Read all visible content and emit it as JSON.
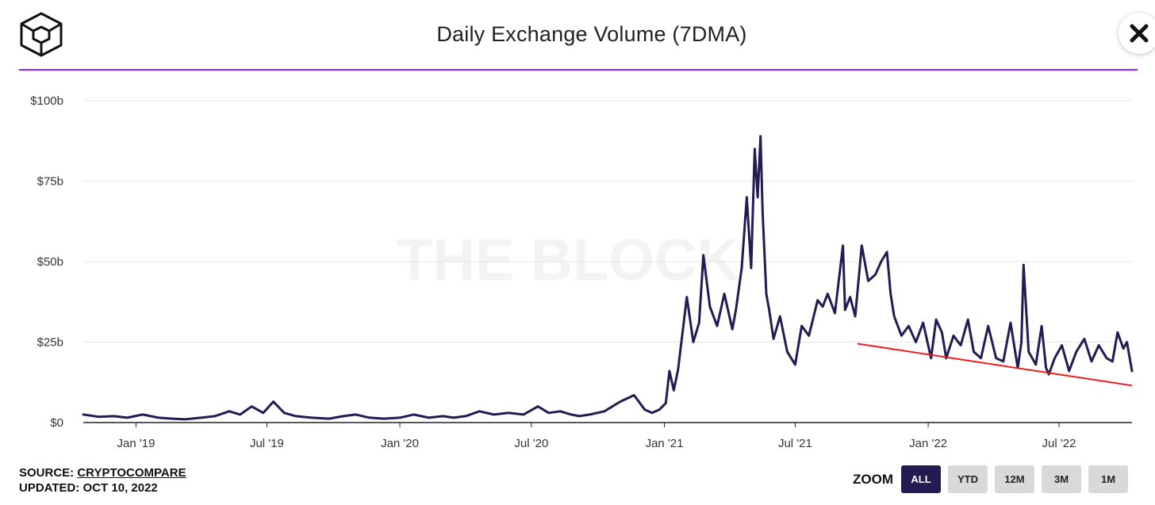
{
  "header": {
    "title": "Daily Exchange Volume (7DMA)",
    "close_icon": "close-icon",
    "logo_icon": "cube-logo-icon"
  },
  "watermark": "THE BLOCK",
  "footer": {
    "source_label": "SOURCE:",
    "source_name": "CRYPTOCOMPARE",
    "updated": "UPDATED: OCT 10, 2022"
  },
  "zoom": {
    "label": "ZOOM",
    "buttons": [
      "ALL",
      "YTD",
      "12M",
      "3M",
      "1M"
    ],
    "active": "ALL"
  },
  "colors": {
    "line": "#231c52",
    "trendline": "#ee1c1c",
    "divider": "#a020f0",
    "grid": "#e6e6e6",
    "active_button": "#231c52"
  },
  "chart_data": {
    "type": "line",
    "title": "Daily Exchange Volume (7DMA)",
    "xlabel": "",
    "ylabel": "",
    "ylim": [
      0,
      100
    ],
    "y_unit": "b",
    "yticks": [
      0,
      25,
      50,
      75,
      100
    ],
    "ytick_labels": [
      "$0",
      "$25b",
      "$50b",
      "$75b",
      "$100b"
    ],
    "xlim": [
      "2018-10-20",
      "2022-10-10"
    ],
    "xtick_labels": [
      {
        "date": "2019-01-01",
        "label": "Jan '19"
      },
      {
        "date": "2019-07-01",
        "label": "Jul '19"
      },
      {
        "date": "2020-01-01",
        "label": "Jan '20"
      },
      {
        "date": "2020-07-01",
        "label": "Jul '20"
      },
      {
        "date": "2021-01-01",
        "label": "Jan '21"
      },
      {
        "date": "2021-07-01",
        "label": "Jul '21"
      },
      {
        "date": "2022-01-01",
        "label": "Jan '22"
      },
      {
        "date": "2022-07-01",
        "label": "Jul '22"
      }
    ],
    "grid": true,
    "series": [
      {
        "x": [
          "2018-10-20",
          "2018-11-10",
          "2018-12-01",
          "2018-12-20",
          "2019-01-10",
          "2019-02-01",
          "2019-02-20",
          "2019-03-10",
          "2019-04-01",
          "2019-04-20",
          "2019-05-10",
          "2019-05-25",
          "2019-06-10",
          "2019-06-26",
          "2019-07-10",
          "2019-07-25",
          "2019-08-10",
          "2019-09-01",
          "2019-09-25",
          "2019-10-15",
          "2019-11-01",
          "2019-11-20",
          "2019-12-10",
          "2020-01-01",
          "2020-01-20",
          "2020-02-10",
          "2020-03-01",
          "2020-03-15",
          "2020-04-01",
          "2020-04-20",
          "2020-05-10",
          "2020-05-30",
          "2020-06-20",
          "2020-07-10",
          "2020-07-25",
          "2020-08-10",
          "2020-08-25",
          "2020-09-05",
          "2020-09-20",
          "2020-10-10",
          "2020-11-01",
          "2020-11-20",
          "2020-12-05",
          "2020-12-15",
          "2020-12-25",
          "2021-01-03",
          "2021-01-08",
          "2021-01-14",
          "2021-01-20",
          "2021-02-01",
          "2021-02-10",
          "2021-02-18",
          "2021-02-24",
          "2021-03-05",
          "2021-03-15",
          "2021-03-25",
          "2021-04-05",
          "2021-04-10",
          "2021-04-18",
          "2021-04-25",
          "2021-05-01",
          "2021-05-06",
          "2021-05-10",
          "2021-05-14",
          "2021-05-17",
          "2021-05-20",
          "2021-05-22",
          "2021-05-26",
          "2021-06-01",
          "2021-06-10",
          "2021-06-20",
          "2021-07-01",
          "2021-07-10",
          "2021-07-20",
          "2021-08-01",
          "2021-08-08",
          "2021-08-15",
          "2021-08-25",
          "2021-09-05",
          "2021-09-08",
          "2021-09-15",
          "2021-09-22",
          "2021-10-01",
          "2021-10-10",
          "2021-10-20",
          "2021-10-28",
          "2021-11-05",
          "2021-11-10",
          "2021-11-15",
          "2021-11-25",
          "2021-12-05",
          "2021-12-15",
          "2021-12-25",
          "2022-01-05",
          "2022-01-12",
          "2022-01-20",
          "2022-01-26",
          "2022-02-05",
          "2022-02-15",
          "2022-02-25",
          "2022-03-05",
          "2022-03-15",
          "2022-03-25",
          "2022-04-05",
          "2022-04-15",
          "2022-04-25",
          "2022-05-05",
          "2022-05-10",
          "2022-05-13",
          "2022-05-20",
          "2022-05-30",
          "2022-06-07",
          "2022-06-13",
          "2022-06-17",
          "2022-06-25",
          "2022-07-05",
          "2022-07-15",
          "2022-07-25",
          "2022-08-05",
          "2022-08-15",
          "2022-08-25",
          "2022-09-05",
          "2022-09-13",
          "2022-09-20",
          "2022-09-28",
          "2022-10-03",
          "2022-10-10"
        ],
        "values": [
          2.5,
          1.8,
          2.0,
          1.5,
          2.5,
          1.5,
          1.2,
          1.0,
          1.5,
          2.0,
          3.5,
          2.5,
          5.0,
          3.0,
          6.5,
          3.0,
          2.0,
          1.5,
          1.2,
          2.0,
          2.5,
          1.5,
          1.2,
          1.5,
          2.5,
          1.5,
          2.0,
          1.5,
          2.0,
          3.5,
          2.5,
          3.0,
          2.5,
          5.0,
          3.0,
          3.5,
          2.5,
          2.0,
          2.5,
          3.5,
          6.5,
          8.5,
          4.0,
          3.0,
          4.0,
          6.0,
          16.0,
          10.0,
          16.5,
          39.0,
          25.0,
          31.0,
          52.0,
          36.0,
          30.0,
          40.0,
          29.0,
          35.0,
          48.0,
          70.0,
          48.0,
          85.0,
          70.0,
          89.0,
          65.0,
          50.0,
          40.0,
          35.0,
          26.0,
          33.0,
          22.0,
          18.0,
          30.0,
          27.0,
          38.0,
          36.0,
          40.0,
          34.0,
          55.0,
          35.0,
          39.0,
          33.0,
          55.0,
          44.0,
          46.0,
          50.0,
          53.0,
          40.0,
          33.0,
          27.0,
          30.0,
          25.0,
          31.0,
          20.0,
          32.0,
          28.0,
          20.0,
          27.0,
          24.0,
          32.0,
          22.0,
          20.0,
          30.0,
          20.0,
          19.0,
          31.0,
          17.0,
          25.0,
          49.0,
          22.0,
          18.0,
          30.0,
          17.0,
          15.0,
          20.0,
          24.0,
          16.0,
          22.0,
          26.0,
          19.0,
          24.0,
          20.0,
          19.0,
          28.0,
          23.0,
          25.0,
          16.0
        ]
      }
    ],
    "trendline": {
      "x": [
        "2021-09-25",
        "2022-10-10"
      ],
      "values": [
        24.5,
        11.5
      ]
    }
  }
}
